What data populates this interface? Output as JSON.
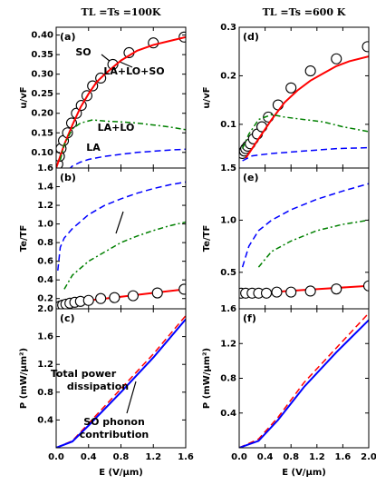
{
  "chart_data": [
    {
      "type": "line",
      "title": "TL =Ts =100K",
      "label": "(a)",
      "y_label": "u/vF",
      "xlim": [
        0,
        1.6
      ],
      "ylim": [
        0.06,
        0.42
      ],
      "yticks": [
        {
          "value": 0.1,
          "label": "0.10"
        },
        0.15,
        {
          "value": 0.2,
          "label": "0.20"
        },
        0.25,
        {
          "value": 0.3,
          "label": "0.30"
        },
        0.35,
        {
          "value": 0.4,
          "label": "0.40"
        }
      ],
      "series": [
        {
          "name": "SO",
          "style": "markers",
          "color": "#000000",
          "x": [
            0.02,
            0.04,
            0.06,
            0.09,
            0.14,
            0.19,
            0.25,
            0.31,
            0.38,
            0.45,
            0.55,
            0.7,
            0.9,
            1.2,
            1.58
          ],
          "values": [
            0.07,
            0.09,
            0.11,
            0.13,
            0.15,
            0.175,
            0.2,
            0.22,
            0.245,
            0.27,
            0.29,
            0.325,
            0.355,
            0.38,
            0.395
          ]
        },
        {
          "name": "LA+LO+SO",
          "style": "solid",
          "color": "#ff0000",
          "x": [
            0,
            0.1,
            0.2,
            0.3,
            0.4,
            0.5,
            0.6,
            0.8,
            1.0,
            1.2,
            1.4,
            1.6
          ],
          "values": [
            0.06,
            0.12,
            0.17,
            0.215,
            0.25,
            0.28,
            0.3,
            0.335,
            0.36,
            0.375,
            0.385,
            0.395
          ]
        },
        {
          "name": "LA+LO",
          "style": "dashdot",
          "color": "#008000",
          "x": [
            0.05,
            0.1,
            0.2,
            0.3,
            0.45,
            0.6,
            0.8,
            1.0,
            1.2,
            1.4,
            1.6
          ],
          "values": [
            0.08,
            0.12,
            0.16,
            0.175,
            0.183,
            0.18,
            0.178,
            0.175,
            0.17,
            0.165,
            0.158
          ]
        },
        {
          "name": "LA",
          "style": "dashed",
          "color": "#0000ff",
          "x": [
            0.15,
            0.2,
            0.3,
            0.4,
            0.6,
            0.8,
            1.0,
            1.2,
            1.4,
            1.6
          ],
          "values": [
            0.055,
            0.065,
            0.075,
            0.082,
            0.09,
            0.095,
            0.1,
            0.103,
            0.106,
            0.108
          ]
        }
      ]
    },
    {
      "type": "line",
      "label": "(b)",
      "y_label": "Te/TF",
      "xlim": [
        0,
        1.6
      ],
      "ylim": [
        0.09,
        1.6
      ],
      "yticks": [
        0.2,
        0.4,
        0.6,
        0.8,
        {
          "value": 1,
          "label": "1.0"
        },
        1.2,
        1.4,
        1.6
      ],
      "series": [
        {
          "style": "dashed",
          "color": "#0000ff",
          "x": [
            0.02,
            0.05,
            0.1,
            0.2,
            0.4,
            0.6,
            0.8,
            1.0,
            1.2,
            1.4,
            1.6
          ],
          "values": [
            0.5,
            0.75,
            0.85,
            0.95,
            1.1,
            1.2,
            1.27,
            1.33,
            1.38,
            1.42,
            1.45
          ]
        },
        {
          "style": "dashdot",
          "color": "#008000",
          "x": [
            0.1,
            0.2,
            0.4,
            0.6,
            0.8,
            1.0,
            1.2,
            1.4,
            1.6
          ],
          "values": [
            0.3,
            0.45,
            0.6,
            0.7,
            0.8,
            0.87,
            0.93,
            0.98,
            1.02
          ]
        },
        {
          "style": "solid",
          "color": "#ff0000",
          "x": [
            0,
            0.2,
            0.4,
            0.8,
            1.2,
            1.6
          ],
          "values": [
            0.1,
            0.15,
            0.18,
            0.22,
            0.26,
            0.3
          ]
        },
        {
          "style": "markers",
          "color": "#000000",
          "x": [
            0.02,
            0.05,
            0.08,
            0.12,
            0.17,
            0.23,
            0.3,
            0.4,
            0.55,
            0.72,
            0.95,
            1.25,
            1.58
          ],
          "values": [
            0.1,
            0.12,
            0.13,
            0.14,
            0.15,
            0.16,
            0.17,
            0.18,
            0.2,
            0.21,
            0.23,
            0.26,
            0.3
          ]
        }
      ]
    },
    {
      "type": "line",
      "label": "(c)",
      "y_label": "P (mW/μm²)",
      "x_label": "E (V/μm)",
      "xlim": [
        0,
        1.6
      ],
      "ylim": [
        0,
        2
      ],
      "xticks": [
        {
          "value": 0,
          "label": "0.0"
        },
        0.4,
        0.8,
        1.2,
        1.6
      ],
      "yticks": [
        0.4,
        0.8,
        1.2,
        1.6,
        {
          "value": 2,
          "label": "2.0"
        }
      ],
      "annotations": [
        "Total power",
        "dissipation",
        "SO phonon",
        "contribution"
      ],
      "series": [
        {
          "style": "dashed",
          "color": "#ff0000",
          "x": [
            0,
            0.2,
            0.4,
            0.8,
            1.2,
            1.6
          ],
          "values": [
            0,
            0.1,
            0.35,
            0.85,
            1.35,
            1.9
          ]
        },
        {
          "style": "solid",
          "color": "#0000ff",
          "x": [
            0,
            0.2,
            0.4,
            0.8,
            1.2,
            1.6
          ],
          "values": [
            0,
            0.09,
            0.32,
            0.8,
            1.3,
            1.85
          ]
        }
      ]
    },
    {
      "type": "line",
      "title": "TL =Ts =600 K",
      "label": "(d)",
      "y_label": "u/vF",
      "xlim": [
        0,
        2
      ],
      "ylim": [
        0.01,
        0.3
      ],
      "yticks": [
        0.1,
        0.2,
        0.3
      ],
      "series": [
        {
          "style": "markers",
          "color": "#000000",
          "x": [
            0.05,
            0.08,
            0.1,
            0.13,
            0.17,
            0.22,
            0.28,
            0.35,
            0.45,
            0.6,
            0.8,
            1.1,
            1.5,
            1.98
          ],
          "values": [
            0.04,
            0.045,
            0.05,
            0.055,
            0.06,
            0.07,
            0.08,
            0.095,
            0.115,
            0.14,
            0.175,
            0.21,
            0.235,
            0.26
          ]
        },
        {
          "style": "solid",
          "color": "#ff0000",
          "x": [
            0.1,
            0.3,
            0.5,
            0.7,
            0.9,
            1.1,
            1.3,
            1.5,
            1.7,
            2.0
          ],
          "values": [
            0.03,
            0.07,
            0.11,
            0.145,
            0.17,
            0.19,
            0.205,
            0.22,
            0.23,
            0.24
          ]
        },
        {
          "style": "dashdot",
          "color": "#008000",
          "x": [
            0.05,
            0.15,
            0.3,
            0.5,
            0.7,
            1.0,
            1.3,
            1.6,
            2.0
          ],
          "values": [
            0.05,
            0.08,
            0.11,
            0.12,
            0.115,
            0.11,
            0.105,
            0.095,
            0.085
          ]
        },
        {
          "style": "dashed",
          "color": "#0000ff",
          "x": [
            0.05,
            0.2,
            0.5,
            1.0,
            1.5,
            2.0
          ],
          "values": [
            0.025,
            0.035,
            0.04,
            0.045,
            0.05,
            0.052
          ]
        }
      ]
    },
    {
      "type": "line",
      "label": "(e)",
      "y_label": "Te/TF",
      "xlim": [
        0,
        2
      ],
      "ylim": [
        0.15,
        1.5
      ],
      "yticks": [
        0.5,
        {
          "value": 1,
          "label": "1.0"
        },
        1.5
      ],
      "series": [
        {
          "style": "dashed",
          "color": "#0000ff",
          "x": [
            0.05,
            0.15,
            0.3,
            0.5,
            0.8,
            1.2,
            1.6,
            2.0
          ],
          "values": [
            0.55,
            0.75,
            0.9,
            1.0,
            1.1,
            1.2,
            1.28,
            1.35
          ]
        },
        {
          "style": "dashdot",
          "color": "#008000",
          "x": [
            0.3,
            0.5,
            0.8,
            1.2,
            1.6,
            2.0
          ],
          "values": [
            0.55,
            0.7,
            0.8,
            0.9,
            0.96,
            1.0
          ]
        },
        {
          "style": "solid",
          "color": "#ff0000",
          "x": [
            0,
            0.5,
            1.0,
            1.5,
            2.0
          ],
          "values": [
            0.3,
            0.31,
            0.33,
            0.35,
            0.37
          ]
        },
        {
          "style": "markers",
          "color": "#000000",
          "x": [
            0.03,
            0.1,
            0.2,
            0.3,
            0.42,
            0.58,
            0.8,
            1.1,
            1.5,
            2.0
          ],
          "values": [
            0.3,
            0.3,
            0.3,
            0.3,
            0.3,
            0.31,
            0.31,
            0.32,
            0.34,
            0.37
          ]
        }
      ]
    },
    {
      "type": "line",
      "label": "(f)",
      "y_label": "P (mW/μm²)",
      "x_label": "E (V/μm)",
      "xlim": [
        0,
        2
      ],
      "ylim": [
        0,
        1.6
      ],
      "xticks": [
        {
          "value": 0,
          "label": "0.0"
        },
        0.4,
        0.8,
        1.2,
        1.6,
        {
          "value": 2,
          "label": "2.0"
        }
      ],
      "yticks": [
        0.4,
        0.8,
        1.2,
        1.6
      ],
      "series": [
        {
          "style": "dashed",
          "color": "#ff0000",
          "x": [
            0,
            0.3,
            0.6,
            1.0,
            1.5,
            2.0
          ],
          "values": [
            0,
            0.1,
            0.35,
            0.75,
            1.15,
            1.55
          ]
        },
        {
          "style": "solid",
          "color": "#0000ff",
          "x": [
            0,
            0.3,
            0.6,
            1.0,
            1.5,
            2.0
          ],
          "values": [
            0,
            0.08,
            0.32,
            0.7,
            1.1,
            1.47
          ]
        }
      ]
    }
  ]
}
